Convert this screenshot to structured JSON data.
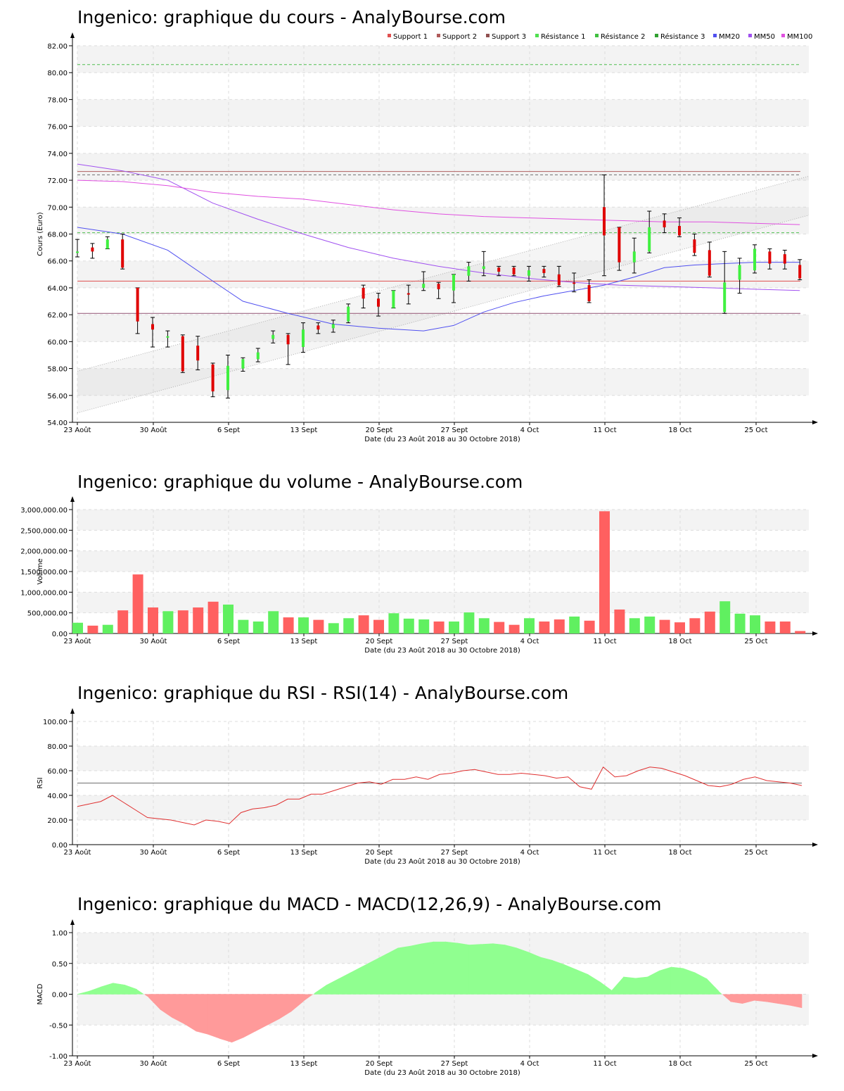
{
  "titles": {
    "price": "Ingenico: graphique du cours - AnalyBourse.com",
    "volume": "Ingenico: graphique du volume - AnalyBourse.com",
    "rsi": "Ingenico: graphique du RSI - RSI(14) - AnalyBourse.com",
    "macd": "Ingenico: graphique du MACD - MACD(12,26,9) - AnalyBourse.com"
  },
  "xaxis": {
    "label": "Date (du 23 Août 2018 au 30 Octobre 2018)",
    "ticks": [
      "23 Août",
      "30 Août",
      "6 Sept",
      "13 Sept",
      "20 Sept",
      "27 Sept",
      "4 Oct",
      "11 Oct",
      "18 Oct",
      "25 Oct"
    ]
  },
  "legend": [
    {
      "name": "Support 1",
      "color": "#e05050"
    },
    {
      "name": "Support 2",
      "color": "#b05a5a"
    },
    {
      "name": "Support 3",
      "color": "#905050"
    },
    {
      "name": "Résistance 1",
      "color": "#50e050"
    },
    {
      "name": "Résistance 2",
      "color": "#40c040"
    },
    {
      "name": "Résistance 3",
      "color": "#30a030"
    },
    {
      "name": "MM20",
      "color": "#5050f0"
    },
    {
      "name": "MM50",
      "color": "#a050f0"
    },
    {
      "name": "MM100",
      "color": "#e050e0"
    }
  ],
  "chart_data": [
    {
      "type": "candlestick",
      "title": "Ingenico: graphique du cours - AnalyBourse.com",
      "xlabel": "Date (du 23 Août 2018 au 30 Octobre 2018)",
      "ylabel": "Cours (Euro)",
      "ylim": [
        54,
        82
      ],
      "yticks": [
        "54.00",
        "56.00",
        "58.00",
        "60.00",
        "62.00",
        "64.00",
        "66.00",
        "68.00",
        "70.00",
        "72.00",
        "74.00",
        "76.00",
        "78.00",
        "80.00",
        "82.00"
      ],
      "colors": {
        "up": "#40f040",
        "down": "#e00000",
        "wick": "#000000"
      },
      "candles": [
        {
          "o": 66.6,
          "c": 66.7,
          "h": 67.6,
          "l": 66.3
        },
        {
          "o": 67.0,
          "c": 66.7,
          "h": 67.3,
          "l": 66.2
        },
        {
          "o": 66.9,
          "c": 67.6,
          "h": 67.8,
          "l": 66.9
        },
        {
          "o": 67.6,
          "c": 65.5,
          "h": 68.0,
          "l": 65.4
        },
        {
          "o": 64.0,
          "c": 61.5,
          "h": 64.0,
          "l": 60.6
        },
        {
          "o": 61.3,
          "c": 60.9,
          "h": 61.8,
          "l": 59.6
        },
        {
          "o": 60.4,
          "c": 60.4,
          "h": 60.8,
          "l": 59.6
        },
        {
          "o": 60.4,
          "c": 57.8,
          "h": 60.5,
          "l": 57.7
        },
        {
          "o": 59.7,
          "c": 58.6,
          "h": 60.4,
          "l": 57.9
        },
        {
          "o": 58.3,
          "c": 56.3,
          "h": 58.4,
          "l": 55.9
        },
        {
          "o": 56.4,
          "c": 58.2,
          "h": 59.0,
          "l": 55.8
        },
        {
          "o": 58.0,
          "c": 58.7,
          "h": 58.8,
          "l": 57.8
        },
        {
          "o": 58.7,
          "c": 59.2,
          "h": 59.5,
          "l": 58.5
        },
        {
          "o": 60.2,
          "c": 60.5,
          "h": 60.8,
          "l": 59.9
        },
        {
          "o": 60.5,
          "c": 59.8,
          "h": 60.6,
          "l": 58.3
        },
        {
          "o": 59.6,
          "c": 60.9,
          "h": 61.4,
          "l": 59.2
        },
        {
          "o": 61.2,
          "c": 60.9,
          "h": 61.4,
          "l": 60.6
        },
        {
          "o": 61.0,
          "c": 61.3,
          "h": 61.6,
          "l": 60.7
        },
        {
          "o": 61.5,
          "c": 62.6,
          "h": 62.8,
          "l": 61.4
        },
        {
          "o": 64.0,
          "c": 63.2,
          "h": 64.2,
          "l": 62.5
        },
        {
          "o": 63.2,
          "c": 62.6,
          "h": 63.6,
          "l": 61.9
        },
        {
          "o": 62.5,
          "c": 63.8,
          "h": 63.8,
          "l": 62.5
        },
        {
          "o": 63.6,
          "c": 63.5,
          "h": 64.2,
          "l": 62.8
        },
        {
          "o": 64.0,
          "c": 64.3,
          "h": 65.2,
          "l": 63.8
        },
        {
          "o": 64.3,
          "c": 63.9,
          "h": 64.4,
          "l": 63.2
        },
        {
          "o": 63.8,
          "c": 65.0,
          "h": 65.0,
          "l": 62.9
        },
        {
          "o": 64.9,
          "c": 65.6,
          "h": 65.9,
          "l": 64.5
        },
        {
          "o": 65.4,
          "c": 65.6,
          "h": 66.7,
          "l": 64.9
        },
        {
          "o": 65.5,
          "c": 65.2,
          "h": 65.6,
          "l": 64.9
        },
        {
          "o": 65.5,
          "c": 65.0,
          "h": 65.6,
          "l": 64.9
        },
        {
          "o": 64.9,
          "c": 65.3,
          "h": 65.6,
          "l": 64.5
        },
        {
          "o": 65.4,
          "c": 65.1,
          "h": 65.6,
          "l": 64.8
        },
        {
          "o": 65.0,
          "c": 64.2,
          "h": 65.6,
          "l": 64.1
        },
        {
          "o": 64.4,
          "c": 64.3,
          "h": 65.1,
          "l": 63.7
        },
        {
          "o": 64.2,
          "c": 63.0,
          "h": 64.6,
          "l": 62.9
        },
        {
          "o": 70.0,
          "c": 67.9,
          "h": 72.4,
          "l": 64.9
        },
        {
          "o": 68.5,
          "c": 65.9,
          "h": 68.5,
          "l": 65.3
        },
        {
          "o": 65.9,
          "c": 66.7,
          "h": 67.7,
          "l": 65.1
        },
        {
          "o": 66.7,
          "c": 68.5,
          "h": 69.7,
          "l": 66.6
        },
        {
          "o": 69.0,
          "c": 68.5,
          "h": 69.5,
          "l": 68.1
        },
        {
          "o": 68.6,
          "c": 67.9,
          "h": 69.2,
          "l": 67.8
        },
        {
          "o": 67.6,
          "c": 66.6,
          "h": 68.0,
          "l": 66.4
        },
        {
          "o": 66.8,
          "c": 64.9,
          "h": 67.4,
          "l": 64.8
        },
        {
          "o": 62.2,
          "c": 64.4,
          "h": 66.7,
          "l": 62.1
        },
        {
          "o": 64.6,
          "c": 65.7,
          "h": 66.2,
          "l": 63.6
        },
        {
          "o": 65.3,
          "c": 66.9,
          "h": 67.2,
          "l": 65.1
        },
        {
          "o": 66.7,
          "c": 65.8,
          "h": 66.9,
          "l": 65.4
        },
        {
          "o": 66.5,
          "c": 65.8,
          "h": 66.8,
          "l": 65.4
        },
        {
          "o": 65.7,
          "c": 64.7,
          "h": 66.1,
          "l": 64.6
        }
      ],
      "support_resistance": [
        {
          "name": "Support 1",
          "value": 64.5,
          "color": "#e05050",
          "dash": false
        },
        {
          "name": "Support 2",
          "value": 62.1,
          "color": "#905070",
          "dash": false
        },
        {
          "name": "Support 3",
          "value": 72.65,
          "color": "#b06060",
          "dash": false
        },
        {
          "name": "Résistance 1",
          "value": 68.1,
          "color": "#50c050",
          "dash": true
        },
        {
          "name": "Résistance 2",
          "value": 72.4,
          "color": "#707070",
          "dash": true
        },
        {
          "name": "Résistance 3",
          "value": 80.6,
          "color": "#50c050",
          "dash": true
        }
      ],
      "moving_averages": [
        {
          "name": "MM20",
          "color": "#5050f0",
          "points": [
            [
              0,
              68.5
            ],
            [
              3,
              68.0
            ],
            [
              6,
              66.8
            ],
            [
              9,
              64.5
            ],
            [
              11,
              63.0
            ],
            [
              14,
              62.1
            ],
            [
              17,
              61.3
            ],
            [
              20,
              61.0
            ],
            [
              23,
              60.8
            ],
            [
              25,
              61.2
            ],
            [
              27,
              62.2
            ],
            [
              29,
              62.9
            ],
            [
              31,
              63.4
            ],
            [
              33,
              63.8
            ],
            [
              35,
              64.2
            ],
            [
              37,
              64.8
            ],
            [
              39,
              65.5
            ],
            [
              41,
              65.7
            ],
            [
              43,
              65.8
            ],
            [
              45,
              65.9
            ],
            [
              48,
              65.9
            ]
          ]
        },
        {
          "name": "MM50",
          "color": "#a050f0",
          "points": [
            [
              0,
              73.2
            ],
            [
              3,
              72.7
            ],
            [
              6,
              72.0
            ],
            [
              9,
              70.3
            ],
            [
              12,
              69.1
            ],
            [
              15,
              68.0
            ],
            [
              18,
              67.0
            ],
            [
              21,
              66.2
            ],
            [
              24,
              65.6
            ],
            [
              27,
              65.1
            ],
            [
              30,
              64.7
            ],
            [
              33,
              64.4
            ],
            [
              36,
              64.2
            ],
            [
              39,
              64.1
            ],
            [
              42,
              64.0
            ],
            [
              45,
              63.9
            ],
            [
              48,
              63.8
            ]
          ]
        },
        {
          "name": "MM100",
          "color": "#e050e0",
          "points": [
            [
              0,
              72.0
            ],
            [
              3,
              71.9
            ],
            [
              6,
              71.6
            ],
            [
              9,
              71.1
            ],
            [
              12,
              70.8
            ],
            [
              15,
              70.6
            ],
            [
              18,
              70.2
            ],
            [
              21,
              69.8
            ],
            [
              24,
              69.5
            ],
            [
              27,
              69.3
            ],
            [
              30,
              69.2
            ],
            [
              33,
              69.1
            ],
            [
              36,
              69.0
            ],
            [
              39,
              68.9
            ],
            [
              42,
              68.9
            ],
            [
              45,
              68.8
            ],
            [
              48,
              68.7
            ]
          ]
        }
      ],
      "channel": {
        "lower_start": 54.7,
        "lower_end": 69.4,
        "upper_start": 57.8,
        "upper_end": 72.3
      }
    },
    {
      "type": "bar",
      "title": "Ingenico: graphique du volume - AnalyBourse.com",
      "ylabel": "Volume",
      "ylim": [
        0,
        3000000
      ],
      "yticks": [
        "0.00",
        "500,000.00",
        "1,000,000.00",
        "1,500,000.00",
        "2,000,000.00",
        "2,500,000.00",
        "3,000,000.00"
      ],
      "colors": {
        "up": "#60f060",
        "down": "#ff6060"
      },
      "values": [
        260000,
        190000,
        210000,
        560000,
        1430000,
        630000,
        540000,
        560000,
        630000,
        770000,
        700000,
        330000,
        290000,
        540000,
        390000,
        390000,
        330000,
        250000,
        370000,
        440000,
        330000,
        490000,
        360000,
        340000,
        290000,
        290000,
        510000,
        370000,
        280000,
        210000,
        370000,
        290000,
        340000,
        410000,
        310000,
        2960000,
        580000,
        370000,
        410000,
        330000,
        270000,
        370000,
        530000,
        780000,
        480000,
        440000,
        290000,
        290000,
        60000
      ],
      "up": [
        true,
        false,
        true,
        false,
        false,
        false,
        true,
        false,
        false,
        false,
        true,
        true,
        true,
        true,
        false,
        true,
        false,
        true,
        true,
        false,
        false,
        true,
        true,
        true,
        false,
        true,
        true,
        true,
        false,
        false,
        true,
        false,
        false,
        true,
        false,
        false,
        false,
        true,
        true,
        false,
        false,
        false,
        false,
        true,
        true,
        true,
        false,
        false,
        false
      ]
    },
    {
      "type": "line",
      "title": "Ingenico: graphique du RSI - RSI(14) - AnalyBourse.com",
      "ylabel": "RSI",
      "ylim": [
        0,
        100
      ],
      "yticks": [
        "0.00",
        "20.00",
        "40.00",
        "60.00",
        "80.00",
        "100.00"
      ],
      "reference_line": 50,
      "series": [
        {
          "color": "#e03030",
          "values": [
            31,
            33,
            35,
            40,
            34,
            28,
            22,
            21,
            20,
            18,
            16,
            20,
            19,
            17,
            26,
            29,
            30,
            32,
            37,
            37,
            41,
            41,
            44,
            47,
            50,
            51,
            49,
            53,
            53,
            55,
            53,
            57,
            58,
            60,
            61,
            59,
            57,
            57,
            58,
            57,
            56,
            54,
            55,
            47,
            45,
            63,
            55,
            56,
            60,
            63,
            62,
            59,
            56,
            52,
            48,
            47,
            49,
            53,
            55,
            52,
            51,
            50,
            48
          ]
        }
      ]
    },
    {
      "type": "area",
      "title": "Ingenico: graphique du MACD - MACD(12,26,9) - AnalyBourse.com",
      "ylabel": "MACD",
      "ylim": [
        -1,
        1
      ],
      "yticks": [
        "-1.00",
        "-0.50",
        "0.00",
        "0.50",
        "1.00"
      ],
      "colors": {
        "positive": "#90ff90",
        "negative": "#ff9a9a"
      },
      "values": [
        0.0,
        0.05,
        0.12,
        0.18,
        0.15,
        0.08,
        -0.05,
        -0.25,
        -0.38,
        -0.48,
        -0.6,
        -0.65,
        -0.72,
        -0.78,
        -0.7,
        -0.6,
        -0.5,
        -0.4,
        -0.28,
        -0.12,
        0.02,
        0.15,
        0.25,
        0.35,
        0.45,
        0.55,
        0.65,
        0.75,
        0.78,
        0.82,
        0.85,
        0.85,
        0.83,
        0.8,
        0.81,
        0.82,
        0.8,
        0.75,
        0.68,
        0.6,
        0.55,
        0.48,
        0.4,
        0.32,
        0.2,
        0.06,
        0.28,
        0.26,
        0.28,
        0.38,
        0.44,
        0.42,
        0.35,
        0.25,
        0.05,
        -0.12,
        -0.15,
        -0.1,
        -0.12,
        -0.15,
        -0.18,
        -0.22
      ]
    }
  ]
}
